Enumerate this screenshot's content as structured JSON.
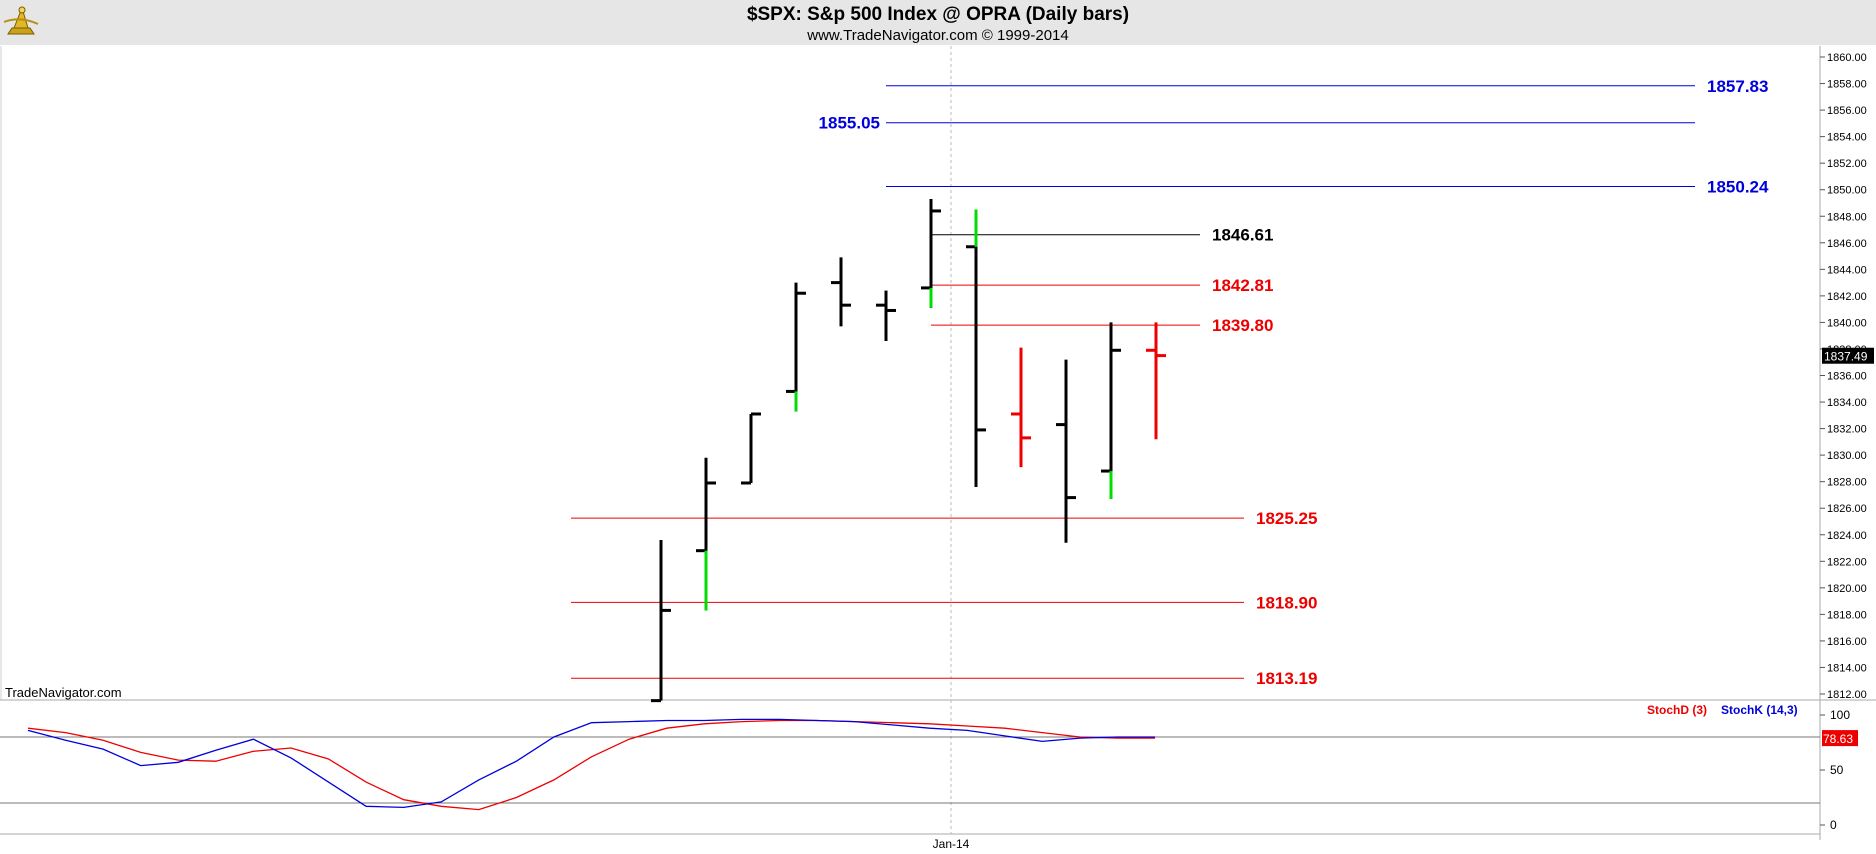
{
  "header": {
    "title": "$SPX:  S&p 500 Index @ OPRA  (Daily bars)",
    "subtitle": "www.TradeNavigator.com © 1999-2014",
    "watermark": "TradeNavigator.com"
  },
  "colors": {
    "background": "#ffffff",
    "header_bg": "#e6e6e6",
    "bar_black": "#000000",
    "bar_up_green": "#00dd00",
    "bar_red": "#ee0000",
    "level_blue": "#0000dd",
    "level_red": "#ee0000",
    "level_black": "#000000",
    "stoch_d": "#ee0000",
    "stoch_k": "#0000dd"
  },
  "chart_data": [
    {
      "type": "ohlc",
      "x_axis": {
        "label": "Jan-14"
      },
      "ylim": [
        1811,
        1861
      ],
      "y_ticks": [
        "1860.00",
        "1858.00",
        "1856.00",
        "1854.00",
        "1852.00",
        "1850.00",
        "1848.00",
        "1846.00",
        "1844.00",
        "1842.00",
        "1840.00",
        "1838.00",
        "1836.00",
        "1834.00",
        "1832.00",
        "1830.00",
        "1828.00",
        "1826.00",
        "1824.00",
        "1822.00",
        "1820.00",
        "1818.00",
        "1816.00",
        "1814.00",
        "1812.00"
      ],
      "last_price_label": "1837.49",
      "last_price": 1837.49,
      "bars": [
        {
          "open": 1811.5,
          "high": 1823.6,
          "low": 1811.5,
          "close": 1818.3,
          "color": "black"
        },
        {
          "open": 1822.8,
          "high": 1829.8,
          "low": 1818.3,
          "close": 1827.9,
          "color": "black"
        },
        {
          "open": 1827.9,
          "high": 1833.1,
          "low": 1827.9,
          "close": 1833.1,
          "color": "black"
        },
        {
          "open": 1834.8,
          "high": 1843.0,
          "low": 1833.3,
          "close": 1842.2,
          "color": "black"
        },
        {
          "open": 1843.0,
          "high": 1844.9,
          "low": 1839.7,
          "close": 1841.3,
          "color": "black"
        },
        {
          "open": 1841.3,
          "high": 1842.4,
          "low": 1838.6,
          "close": 1840.9,
          "color": "black"
        },
        {
          "open": 1842.6,
          "high": 1849.3,
          "low": 1841.1,
          "close": 1848.4,
          "color": "black"
        },
        {
          "open": 1845.7,
          "high": 1848.5,
          "low": 1827.6,
          "close": 1831.9,
          "color": "black"
        },
        {
          "open": 1833.1,
          "high": 1838.1,
          "low": 1829.1,
          "close": 1831.3,
          "color": "red"
        },
        {
          "open": 1832.3,
          "high": 1837.2,
          "low": 1823.4,
          "close": 1826.8,
          "color": "black"
        },
        {
          "open": 1828.8,
          "high": 1840.0,
          "low": 1826.7,
          "close": 1837.9,
          "color": "black"
        },
        {
          "open": 1837.9,
          "high": 1840.0,
          "low": 1831.2,
          "close": 1837.5,
          "color": "red"
        }
      ],
      "green_segments": [
        {
          "bar": 1,
          "from": 1818.3,
          "to": 1822.8
        },
        {
          "bar": 3,
          "from": 1833.3,
          "to": 1834.8
        },
        {
          "bar": 6,
          "from": 1841.1,
          "to": 1842.6
        },
        {
          "bar": 7,
          "from": 1845.7,
          "to": 1848.5
        },
        {
          "bar": 10,
          "from": 1826.7,
          "to": 1828.8
        }
      ],
      "levels": [
        {
          "value": 1857.83,
          "label": "1857.83",
          "color": "blue",
          "label_side": "right"
        },
        {
          "value": 1855.05,
          "label": "1855.05",
          "color": "blue",
          "label_side": "left"
        },
        {
          "value": 1850.24,
          "label": "1850.24",
          "color": "blue",
          "label_side": "right"
        },
        {
          "value": 1846.61,
          "label": "1846.61",
          "color": "black",
          "label_side": "right"
        },
        {
          "value": 1842.81,
          "label": "1842.81",
          "color": "red",
          "label_side": "right"
        },
        {
          "value": 1839.8,
          "label": "1839.80",
          "color": "red",
          "label_side": "right"
        },
        {
          "value": 1825.25,
          "label": "1825.25",
          "color": "red",
          "label_side": "right"
        },
        {
          "value": 1818.9,
          "label": "1818.90",
          "color": "red",
          "label_side": "right"
        },
        {
          "value": 1813.19,
          "label": "1813.19",
          "color": "red",
          "label_side": "right"
        }
      ]
    },
    {
      "type": "line",
      "legend": [
        "StochD (3)",
        "StochK (14,3)"
      ],
      "ylim": [
        0,
        100
      ],
      "y_ticks": [
        "100",
        "50",
        "0"
      ],
      "reference_lines": [
        80,
        20
      ],
      "last_value_label": "78.63",
      "series": [
        {
          "name": "StochD (3)",
          "color": "red",
          "values": [
            88,
            84,
            77,
            66,
            59,
            58,
            67,
            70,
            60,
            39,
            23,
            17,
            14,
            25,
            41,
            62,
            78,
            88,
            92,
            94,
            95,
            95,
            94,
            93,
            92,
            90,
            88,
            84,
            80,
            79,
            79
          ]
        },
        {
          "name": "StochK (14,3)",
          "color": "blue",
          "values": [
            86,
            77,
            69,
            54,
            57,
            68,
            78,
            61,
            39,
            17,
            16,
            21,
            41,
            58,
            80,
            93,
            94,
            95,
            95,
            96,
            96,
            95,
            94,
            91,
            88,
            86,
            81,
            76,
            79,
            80,
            80
          ]
        }
      ]
    }
  ]
}
